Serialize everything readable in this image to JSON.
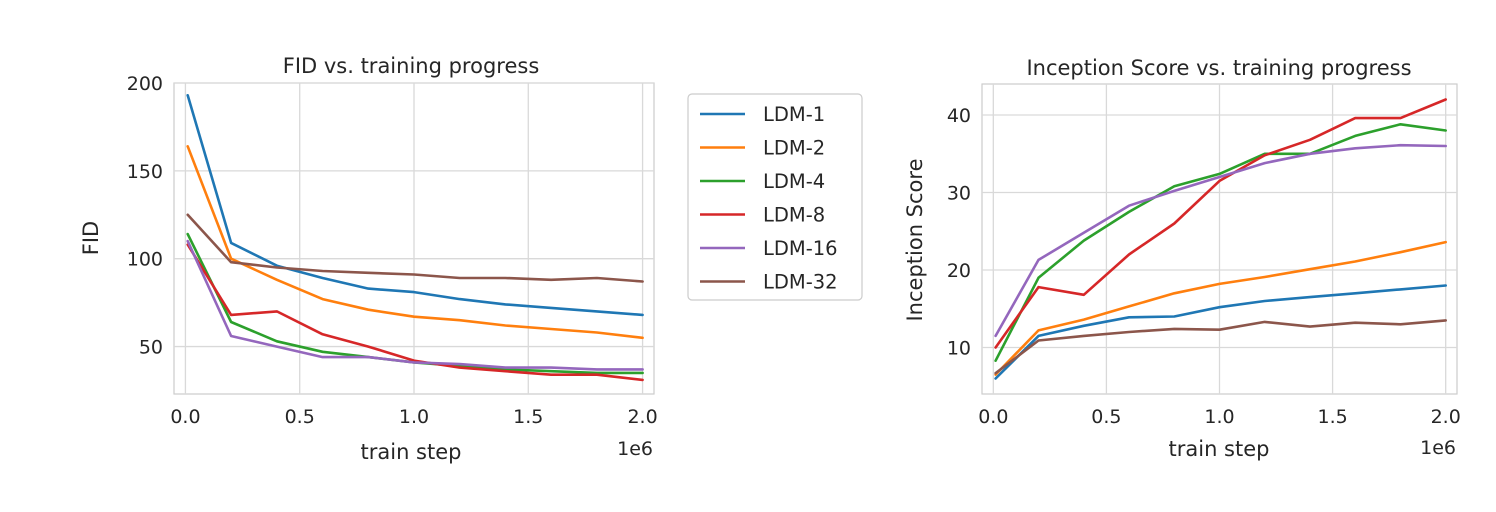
{
  "chart_data": [
    {
      "type": "line",
      "title": "FID vs. training progress",
      "xlabel": "train step",
      "ylabel": "FID",
      "x_offset_label": "1e6",
      "xlim": [
        -0.05,
        2.05
      ],
      "ylim": [
        23,
        200
      ],
      "xticks": [
        0.0,
        0.5,
        1.0,
        1.5,
        2.0
      ],
      "xtick_labels": [
        "0.0",
        "0.5",
        "1.0",
        "1.5",
        "2.0"
      ],
      "yticks": [
        50,
        100,
        150,
        200
      ],
      "ytick_labels": [
        "50",
        "100",
        "150",
        "200"
      ],
      "grid": true,
      "legend": "outside-right",
      "x": [
        0.01,
        0.2,
        0.4,
        0.6,
        0.8,
        1.0,
        1.2,
        1.4,
        1.6,
        1.8,
        2.0
      ],
      "series": [
        {
          "name": "LDM-1",
          "color": "#1f77b4",
          "values": [
            193,
            109,
            96,
            89,
            83,
            81,
            77,
            74,
            72,
            70,
            68
          ]
        },
        {
          "name": "LDM-2",
          "color": "#ff7f0e",
          "values": [
            164,
            100,
            88,
            77,
            71,
            67,
            65,
            62,
            60,
            58,
            55
          ]
        },
        {
          "name": "LDM-4",
          "color": "#2ca02c",
          "values": [
            114,
            64,
            53,
            47,
            44,
            41,
            39,
            37,
            36,
            35,
            35
          ]
        },
        {
          "name": "LDM-8",
          "color": "#d62728",
          "values": [
            108,
            68,
            70,
            57,
            50,
            42,
            38,
            36,
            34,
            34,
            31
          ]
        },
        {
          "name": "LDM-16",
          "color": "#9467bd",
          "values": [
            110,
            56,
            50,
            44,
            44,
            41,
            40,
            38,
            38,
            37,
            37
          ]
        },
        {
          "name": "LDM-32",
          "color": "#8c564b",
          "values": [
            125,
            98,
            95,
            93,
            92,
            91,
            89,
            89,
            88,
            89,
            87
          ]
        }
      ]
    },
    {
      "type": "line",
      "title": "Inception Score vs. training progress",
      "xlabel": "train step",
      "ylabel": "Inception Score",
      "x_offset_label": "1e6",
      "xlim": [
        -0.05,
        2.05
      ],
      "ylim": [
        4,
        44
      ],
      "xticks": [
        0.0,
        0.5,
        1.0,
        1.5,
        2.0
      ],
      "xtick_labels": [
        "0.0",
        "0.5",
        "1.0",
        "1.5",
        "2.0"
      ],
      "yticks": [
        10,
        20,
        30,
        40
      ],
      "ytick_labels": [
        "10",
        "20",
        "30",
        "40"
      ],
      "grid": true,
      "x": [
        0.01,
        0.2,
        0.4,
        0.6,
        0.8,
        1.0,
        1.2,
        1.4,
        1.6,
        1.8,
        2.0
      ],
      "series": [
        {
          "name": "LDM-1",
          "color": "#1f77b4",
          "values": [
            6.0,
            11.5,
            12.8,
            13.9,
            14.0,
            15.2,
            16.0,
            16.5,
            17.0,
            17.5,
            18.0
          ]
        },
        {
          "name": "LDM-2",
          "color": "#ff7f0e",
          "values": [
            6.5,
            12.2,
            13.6,
            15.3,
            17.0,
            18.2,
            19.1,
            20.1,
            21.1,
            22.3,
            23.6
          ]
        },
        {
          "name": "LDM-4",
          "color": "#2ca02c",
          "values": [
            8.3,
            19.0,
            23.8,
            27.5,
            30.8,
            32.4,
            35.0,
            35.0,
            37.3,
            38.8,
            38.0
          ]
        },
        {
          "name": "LDM-8",
          "color": "#d62728",
          "values": [
            10.0,
            17.8,
            16.8,
            22.0,
            26.0,
            31.5,
            34.8,
            36.8,
            39.6,
            39.6,
            42.0
          ]
        },
        {
          "name": "LDM-16",
          "color": "#9467bd",
          "values": [
            11.5,
            21.3,
            24.8,
            28.3,
            30.2,
            32.0,
            33.8,
            35.0,
            35.7,
            36.1,
            36.0
          ]
        },
        {
          "name": "LDM-32",
          "color": "#8c564b",
          "values": [
            6.7,
            10.9,
            11.5,
            12.0,
            12.4,
            12.3,
            13.3,
            12.7,
            13.2,
            13.0,
            13.5
          ]
        }
      ]
    }
  ]
}
